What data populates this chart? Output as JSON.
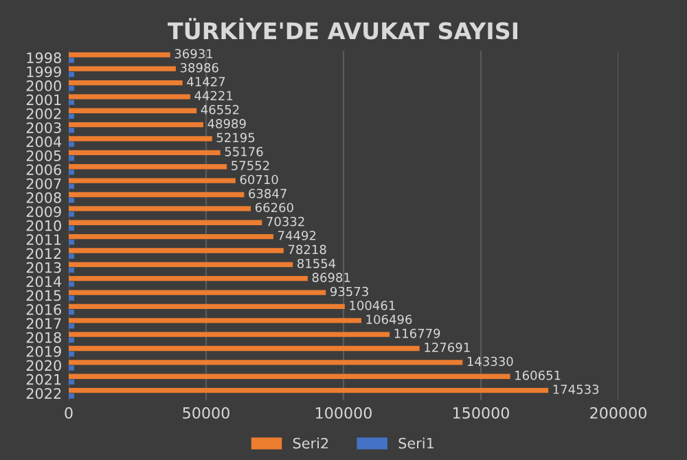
{
  "chart_data": {
    "type": "bar",
    "orientation": "horizontal",
    "title": "TÜRKİYE'DE AVUKAT SAYISI",
    "categories": [
      "1998",
      "1999",
      "2000",
      "2001",
      "2002",
      "2003",
      "2004",
      "2005",
      "2006",
      "2007",
      "2008",
      "2009",
      "2010",
      "2011",
      "2012",
      "2013",
      "2014",
      "2015",
      "2016",
      "2017",
      "2018",
      "2019",
      "2020",
      "2021",
      "2022"
    ],
    "series": [
      {
        "name": "Seri2",
        "color": "#ed7d31",
        "values": [
          36931,
          38986,
          41427,
          44221,
          46552,
          48989,
          52195,
          55176,
          57552,
          60710,
          63847,
          66260,
          70332,
          74492,
          78218,
          81554,
          86981,
          93573,
          100461,
          106496,
          116779,
          127691,
          143330,
          160651,
          174533
        ],
        "data_labels": true
      },
      {
        "name": "Seri1",
        "color": "#4472c4",
        "values": [
          1998,
          1999,
          2000,
          2001,
          2002,
          2003,
          2004,
          2005,
          2006,
          2007,
          2008,
          2009,
          2010,
          2011,
          2012,
          2013,
          2014,
          2015,
          2016,
          2017,
          2018,
          2019,
          2020,
          2021,
          2022
        ]
      }
    ],
    "xlim": [
      0,
      200000
    ],
    "xticks": [
      0,
      50000,
      100000,
      150000,
      200000
    ],
    "grid": "x",
    "legend": "bottom"
  }
}
